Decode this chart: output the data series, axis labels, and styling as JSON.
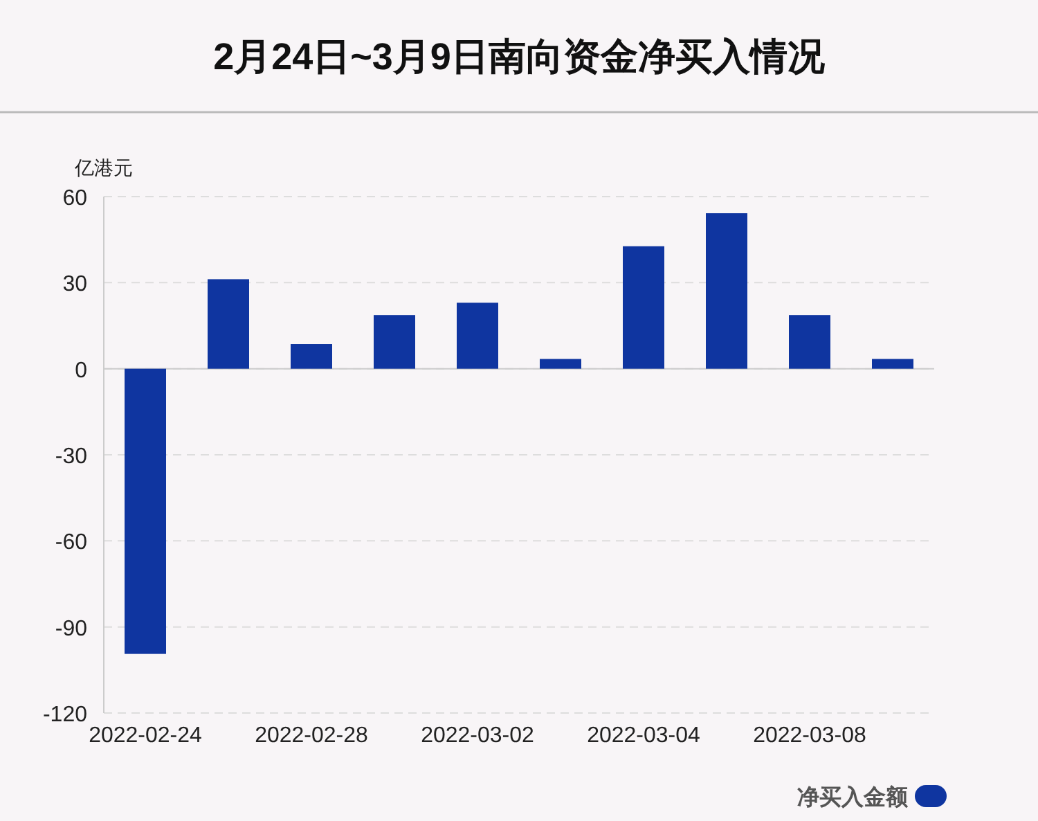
{
  "chart_data": {
    "type": "bar",
    "title": "2月24日~3月9日南向资金净买入情况",
    "ylabel": "亿港元",
    "categories": [
      "2022-02-24",
      null,
      "2022-02-28",
      null,
      "2022-03-02",
      null,
      "2022-03-04",
      null,
      "2022-03-08",
      null
    ],
    "series": [
      {
        "name": "净买入金额",
        "color": "#0f35a0",
        "values": [
          -99.4,
          31.2,
          8.6,
          18.7,
          23.0,
          3.4,
          42.7,
          54.2,
          18.7,
          3.4
        ]
      }
    ],
    "ylim": [
      -120,
      60
    ],
    "yticks": [
      -120,
      -90,
      -60,
      -30,
      0,
      30,
      60
    ],
    "grid": "y",
    "legend": "bottom right"
  }
}
